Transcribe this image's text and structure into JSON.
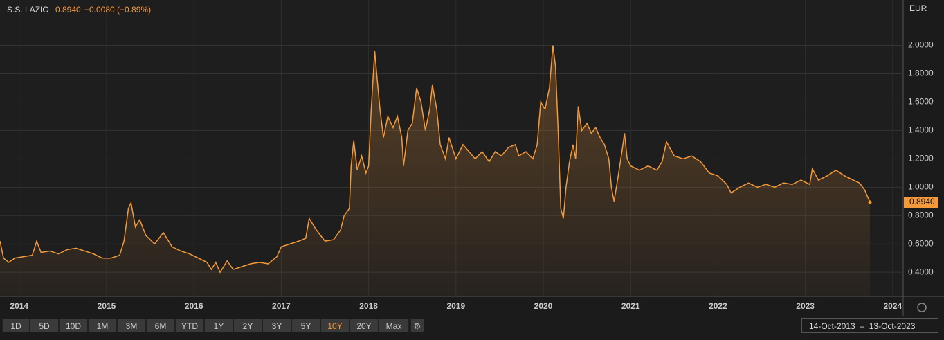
{
  "chart_data": {
    "type": "line",
    "title": "S.S. LAZIO",
    "price_label": "0.8940",
    "change": "−0.0080 (−0.89%)",
    "currency": "EUR",
    "x": [
      2013.78,
      2013.82,
      2013.88,
      2013.95,
      2014.05,
      2014.15,
      2014.2,
      2014.25,
      2014.35,
      2014.45,
      2014.55,
      2014.65,
      2014.75,
      2014.85,
      2014.95,
      2015.05,
      2015.15,
      2015.2,
      2015.25,
      2015.28,
      2015.33,
      2015.38,
      2015.45,
      2015.55,
      2015.6,
      2015.65,
      2015.75,
      2015.85,
      2015.95,
      2016.05,
      2016.15,
      2016.2,
      2016.25,
      2016.3,
      2016.38,
      2016.45,
      2016.55,
      2016.65,
      2016.75,
      2016.85,
      2016.95,
      2017.0,
      2017.1,
      2017.2,
      2017.28,
      2017.32,
      2017.4,
      2017.5,
      2017.6,
      2017.68,
      2017.72,
      2017.78,
      2017.8,
      2017.83,
      2017.87,
      2017.92,
      2017.97,
      2018.0,
      2018.03,
      2018.07,
      2018.1,
      2018.13,
      2018.17,
      2018.22,
      2018.28,
      2018.33,
      2018.38,
      2018.4,
      2018.45,
      2018.5,
      2018.55,
      2018.6,
      2018.65,
      2018.7,
      2018.73,
      2018.78,
      2018.82,
      2018.88,
      2018.92,
      2019.0,
      2019.08,
      2019.15,
      2019.22,
      2019.3,
      2019.38,
      2019.45,
      2019.52,
      2019.6,
      2019.68,
      2019.72,
      2019.8,
      2019.88,
      2019.93,
      2019.97,
      2020.02,
      2020.07,
      2020.11,
      2020.14,
      2020.17,
      2020.2,
      2020.23,
      2020.26,
      2020.3,
      2020.34,
      2020.37,
      2020.4,
      2020.44,
      2020.5,
      2020.55,
      2020.6,
      2020.65,
      2020.7,
      2020.75,
      2020.78,
      2020.81,
      2020.85,
      2020.9,
      2020.93,
      2020.96,
      2021.0,
      2021.1,
      2021.2,
      2021.3,
      2021.36,
      2021.41,
      2021.5,
      2021.6,
      2021.7,
      2021.8,
      2021.9,
      2022.0,
      2022.1,
      2022.15,
      2022.25,
      2022.35,
      2022.45,
      2022.55,
      2022.65,
      2022.75,
      2022.85,
      2022.95,
      2023.05,
      2023.08,
      2023.15,
      2023.25,
      2023.35,
      2023.45,
      2023.55,
      2023.62,
      2023.68,
      2023.74
    ],
    "series": [
      {
        "name": "S.S. LAZIO",
        "color": "#f59a3b",
        "values": [
          0.62,
          0.5,
          0.47,
          0.5,
          0.51,
          0.52,
          0.62,
          0.54,
          0.55,
          0.53,
          0.56,
          0.57,
          0.55,
          0.53,
          0.5,
          0.5,
          0.52,
          0.62,
          0.85,
          0.89,
          0.72,
          0.77,
          0.66,
          0.6,
          0.64,
          0.68,
          0.58,
          0.55,
          0.53,
          0.5,
          0.47,
          0.42,
          0.47,
          0.4,
          0.48,
          0.42,
          0.44,
          0.46,
          0.47,
          0.46,
          0.51,
          0.58,
          0.6,
          0.62,
          0.64,
          0.78,
          0.7,
          0.62,
          0.63,
          0.7,
          0.8,
          0.85,
          1.15,
          1.33,
          1.12,
          1.22,
          1.1,
          1.15,
          1.55,
          1.96,
          1.75,
          1.55,
          1.35,
          1.5,
          1.42,
          1.5,
          1.35,
          1.15,
          1.4,
          1.45,
          1.7,
          1.6,
          1.4,
          1.55,
          1.72,
          1.55,
          1.3,
          1.2,
          1.35,
          1.2,
          1.3,
          1.25,
          1.2,
          1.25,
          1.18,
          1.25,
          1.22,
          1.28,
          1.3,
          1.22,
          1.25,
          1.2,
          1.3,
          1.6,
          1.55,
          1.7,
          2.0,
          1.85,
          1.4,
          0.85,
          0.78,
          1.0,
          1.18,
          1.3,
          1.2,
          1.57,
          1.4,
          1.45,
          1.38,
          1.42,
          1.35,
          1.3,
          1.2,
          1.0,
          0.9,
          1.05,
          1.25,
          1.38,
          1.2,
          1.15,
          1.12,
          1.15,
          1.12,
          1.18,
          1.32,
          1.22,
          1.2,
          1.22,
          1.18,
          1.1,
          1.08,
          1.02,
          0.96,
          1.0,
          1.03,
          1.0,
          1.02,
          1.0,
          1.03,
          1.02,
          1.05,
          1.02,
          1.13,
          1.05,
          1.08,
          1.12,
          1.08,
          1.05,
          1.03,
          0.98,
          0.894
        ]
      }
    ],
    "xlim": [
      2013.78,
      2024.12
    ],
    "xticks": [
      2014,
      2015,
      2016,
      2017,
      2018,
      2019,
      2020,
      2021,
      2022,
      2023,
      2024
    ],
    "ylim": [
      0.23,
      2.32
    ],
    "yticks": [
      {
        "value": 0.4,
        "label": "0.4000"
      },
      {
        "value": 0.6,
        "label": "0.6000"
      },
      {
        "value": 0.8,
        "label": "0.8000"
      },
      {
        "value": 1.0,
        "label": "1.0000"
      },
      {
        "value": 1.2,
        "label": "1.2000"
      },
      {
        "value": 1.4,
        "label": "1.4000"
      },
      {
        "value": 1.6,
        "label": "1.6000"
      },
      {
        "value": 1.8,
        "label": "1.8000"
      },
      {
        "value": 2.0,
        "label": "2.0000"
      }
    ],
    "grid": true
  },
  "controls": {
    "ranges": [
      "1D",
      "5D",
      "10D",
      "1M",
      "3M",
      "6M",
      "YTD",
      "1Y",
      "2Y",
      "3Y",
      "5Y",
      "10Y",
      "20Y",
      "Max"
    ],
    "active": "10Y",
    "date_from": "14-Oct-2013",
    "separator": "–",
    "date_to": "13-Oct-2023"
  }
}
